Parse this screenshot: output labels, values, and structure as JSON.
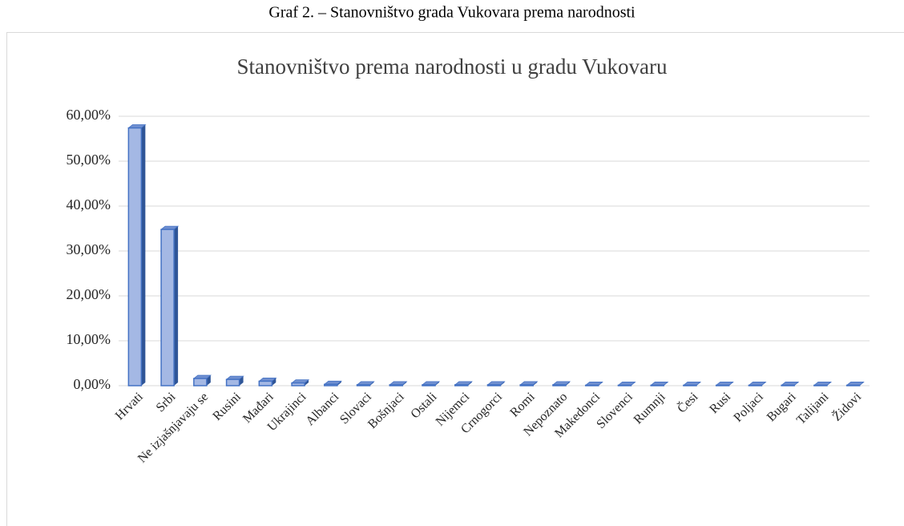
{
  "caption": "Graf 2. – Stanovništvo grada Vukovara prema narodnosti",
  "chart_data": {
    "type": "bar3d",
    "title": "Stanovništvo prema narodnosti u gradu Vukovaru",
    "categories": [
      "Hrvati",
      "Srbi",
      "Ne izjašnjavaju se",
      "Rusini",
      "Mađari",
      "Ukrajinci",
      "Albanci",
      "Slovaci",
      "Bošnjaci",
      "Ostali",
      "Nijemci",
      "Crnogorci",
      "Romi",
      "Nepoznato",
      "Makedonci",
      "Slovenci",
      "Rumnji",
      "Česi",
      "Rusi",
      "Poljaci",
      "Bugari",
      "Talijani",
      "Židovi"
    ],
    "values": [
      57.4,
      34.8,
      1.6,
      1.4,
      1.0,
      0.6,
      0.3,
      0.2,
      0.2,
      0.2,
      0.2,
      0.2,
      0.2,
      0.2,
      0.1,
      0.1,
      0.1,
      0.1,
      0.1,
      0.1,
      0.1,
      0.1,
      0.1
    ],
    "color": "#4472c4",
    "ylim": [
      0,
      60
    ],
    "yticks": [
      {
        "value": 0,
        "label": "0,00%"
      },
      {
        "value": 10,
        "label": "10,00%"
      },
      {
        "value": 20,
        "label": "20,00%"
      },
      {
        "value": 30,
        "label": "30,00%"
      },
      {
        "value": 40,
        "label": "40,00%"
      },
      {
        "value": 50,
        "label": "50,00%"
      },
      {
        "value": 60,
        "label": "60,00%"
      }
    ],
    "grid": true
  }
}
